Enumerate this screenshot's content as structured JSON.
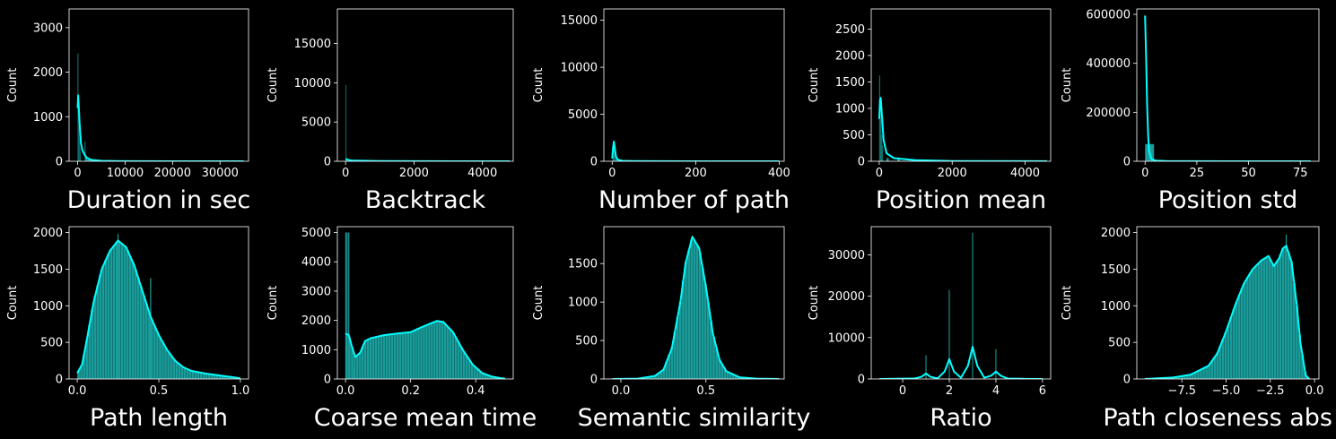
{
  "figure": {
    "background": "#000000"
  },
  "style": {
    "bar_fill": "#1a9c9a",
    "bar_stroke": "#0b4f4e",
    "kde": "#00ffff",
    "axis": "#ffffff",
    "text": "#ffffff"
  },
  "chart_data": [
    {
      "type": "histogram",
      "xlabel": "Duration in sec",
      "ylabel": "Count",
      "xlim": [
        -1800,
        36000
      ],
      "ylim": [
        0,
        3420
      ],
      "xticks": [
        0,
        10000,
        20000,
        30000
      ],
      "xtick_labels": [
        "0",
        "10000",
        "20000",
        "30000"
      ],
      "yticks": [
        0,
        1000,
        2000,
        3000
      ],
      "ytick_labels": [
        "0",
        "1000",
        "2000",
        "3000"
      ],
      "bars": [
        [
          0,
          100,
          2420
        ],
        [
          100,
          200,
          1000
        ],
        [
          200,
          300,
          800
        ],
        [
          300,
          400,
          520
        ],
        [
          400,
          500,
          300
        ],
        [
          500,
          600,
          200
        ],
        [
          1500,
          1600,
          440
        ],
        [
          1600,
          2000,
          80
        ],
        [
          2000,
          3000,
          40
        ]
      ],
      "kde": [
        [
          0,
          1200
        ],
        [
          100,
          1480
        ],
        [
          200,
          1300
        ],
        [
          400,
          900
        ],
        [
          700,
          400
        ],
        [
          1000,
          250
        ],
        [
          1500,
          140
        ],
        [
          2000,
          70
        ],
        [
          3000,
          30
        ],
        [
          5000,
          10
        ],
        [
          10000,
          3
        ],
        [
          20000,
          1
        ],
        [
          35000,
          0
        ]
      ]
    },
    {
      "type": "histogram",
      "xlabel": "Backtrack",
      "ylabel": "Count",
      "xlim": [
        -240,
        4900
      ],
      "ylim": [
        0,
        19400
      ],
      "xticks": [
        0,
        2000,
        4000
      ],
      "xtick_labels": [
        "0",
        "2000",
        "4000"
      ],
      "yticks": [
        0,
        5000,
        10000,
        15000
      ],
      "ytick_labels": [
        "0",
        "5000",
        "10000",
        "15000"
      ],
      "bars": [
        [
          0,
          8,
          9700
        ],
        [
          8,
          20,
          500
        ],
        [
          20,
          60,
          150
        ]
      ],
      "kde": [
        [
          0,
          300
        ],
        [
          50,
          200
        ],
        [
          200,
          80
        ],
        [
          1000,
          20
        ],
        [
          2000,
          8
        ],
        [
          4800,
          3
        ]
      ]
    },
    {
      "type": "histogram",
      "xlabel": "Number of path",
      "ylabel": "Count",
      "xlim": [
        -20,
        412
      ],
      "ylim": [
        0,
        16200
      ],
      "xticks": [
        0,
        200,
        400
      ],
      "xtick_labels": [
        "0",
        "200",
        "400"
      ],
      "yticks": [
        0,
        5000,
        10000,
        15000
      ],
      "ytick_labels": [
        "0",
        "5000",
        "10000",
        "15000"
      ],
      "bars": [
        [
          1,
          3,
          800
        ],
        [
          3,
          5,
          2000
        ],
        [
          5,
          7,
          1400
        ],
        [
          7,
          9,
          600
        ],
        [
          9,
          12,
          250
        ]
      ],
      "kde": [
        [
          0,
          300
        ],
        [
          2,
          1400
        ],
        [
          4,
          2100
        ],
        [
          6,
          1500
        ],
        [
          9,
          500
        ],
        [
          14,
          150
        ],
        [
          25,
          50
        ],
        [
          50,
          20
        ],
        [
          100,
          8
        ],
        [
          200,
          4
        ],
        [
          400,
          1
        ]
      ]
    },
    {
      "type": "histogram",
      "xlabel": "Position mean",
      "ylabel": "Count",
      "xlim": [
        -220,
        4700
      ],
      "ylim": [
        0,
        2880
      ],
      "xticks": [
        0,
        2000,
        4000
      ],
      "xtick_labels": [
        "0",
        "2000",
        "4000"
      ],
      "yticks": [
        0,
        500,
        1000,
        1500,
        2000,
        2500
      ],
      "ytick_labels": [
        "0",
        "500",
        "1000",
        "1500",
        "2000",
        "2500"
      ],
      "bars": [
        [
          0,
          20,
          1620
        ],
        [
          20,
          40,
          1200
        ],
        [
          40,
          60,
          800
        ],
        [
          60,
          80,
          500
        ],
        [
          80,
          100,
          300
        ],
        [
          200,
          260,
          60
        ],
        [
          500,
          560,
          70
        ],
        [
          900,
          960,
          40
        ]
      ],
      "kde": [
        [
          0,
          800
        ],
        [
          20,
          1150
        ],
        [
          40,
          1200
        ],
        [
          70,
          900
        ],
        [
          120,
          400
        ],
        [
          200,
          150
        ],
        [
          400,
          60
        ],
        [
          1000,
          20
        ],
        [
          2000,
          5
        ],
        [
          4600,
          1
        ]
      ]
    },
    {
      "type": "histogram",
      "xlabel": "Position std",
      "ylabel": "Count",
      "xlim": [
        -4,
        84
      ],
      "ylim": [
        0,
        622000
      ],
      "xticks": [
        0,
        25,
        50,
        75
      ],
      "xtick_labels": [
        "0",
        "25",
        "50",
        "75"
      ],
      "yticks": [
        0,
        200000,
        400000,
        600000
      ],
      "ytick_labels": [
        "0",
        "200000",
        "400000",
        "600000"
      ],
      "bars": [
        [
          0,
          4.3,
          70000
        ],
        [
          4.3,
          8.6,
          4000
        ],
        [
          8.6,
          12.9,
          1500
        ],
        [
          12.9,
          17.2,
          500
        ]
      ],
      "kde": [
        [
          0,
          595000
        ],
        [
          0.5,
          420000
        ],
        [
          1,
          230000
        ],
        [
          1.5,
          100000
        ],
        [
          2,
          40000
        ],
        [
          3,
          10000
        ],
        [
          5,
          2500
        ],
        [
          10,
          800
        ],
        [
          20,
          200
        ],
        [
          40,
          50
        ],
        [
          80,
          0
        ]
      ]
    },
    {
      "type": "histogram",
      "xlabel": "Path length",
      "ylabel": "Count",
      "xlim": [
        -0.05,
        1.05
      ],
      "ylim": [
        0,
        2080
      ],
      "xticks": [
        0,
        0.5,
        1
      ],
      "xtick_labels": [
        "0.0",
        "0.5",
        "1.0"
      ],
      "yticks": [
        0,
        500,
        1000,
        1500,
        2000
      ],
      "ytick_labels": [
        "0",
        "500",
        "1000",
        "1500",
        "2000"
      ],
      "bars": "kde",
      "spikes": [
        [
          0.25,
          1980
        ],
        [
          0.45,
          1380
        ]
      ],
      "kde": [
        [
          0,
          80
        ],
        [
          0.03,
          200
        ],
        [
          0.06,
          550
        ],
        [
          0.1,
          1050
        ],
        [
          0.15,
          1500
        ],
        [
          0.2,
          1750
        ],
        [
          0.25,
          1890
        ],
        [
          0.3,
          1800
        ],
        [
          0.35,
          1550
        ],
        [
          0.4,
          1200
        ],
        [
          0.45,
          850
        ],
        [
          0.5,
          600
        ],
        [
          0.55,
          400
        ],
        [
          0.6,
          250
        ],
        [
          0.65,
          160
        ],
        [
          0.7,
          110
        ],
        [
          0.8,
          70
        ],
        [
          0.9,
          40
        ],
        [
          1.0,
          10
        ]
      ]
    },
    {
      "type": "histogram",
      "xlabel": "Coarse mean time",
      "ylabel": "Count",
      "xlim": [
        -0.025,
        0.515
      ],
      "ylim": [
        0,
        5200
      ],
      "xticks": [
        0,
        0.2,
        0.4
      ],
      "xtick_labels": [
        "0.0",
        "0.2",
        "0.4"
      ],
      "yticks": [
        0,
        1000,
        2000,
        3000,
        4000,
        5000
      ],
      "ytick_labels": [
        "0",
        "1000",
        "2000",
        "3000",
        "4000",
        "5000"
      ],
      "bars": "kde",
      "spikes": [
        [
          0.001,
          5000
        ],
        [
          0.005,
          5000
        ],
        [
          0.01,
          5000
        ],
        [
          0.022,
          800
        ],
        [
          0.026,
          400
        ]
      ],
      "kde": [
        [
          0,
          1550
        ],
        [
          0.01,
          1500
        ],
        [
          0.02,
          1100
        ],
        [
          0.03,
          750
        ],
        [
          0.045,
          900
        ],
        [
          0.06,
          1300
        ],
        [
          0.08,
          1400
        ],
        [
          0.12,
          1500
        ],
        [
          0.16,
          1550
        ],
        [
          0.2,
          1600
        ],
        [
          0.24,
          1800
        ],
        [
          0.28,
          1980
        ],
        [
          0.3,
          1950
        ],
        [
          0.33,
          1600
        ],
        [
          0.36,
          1000
        ],
        [
          0.39,
          500
        ],
        [
          0.42,
          200
        ],
        [
          0.45,
          80
        ],
        [
          0.48,
          20
        ],
        [
          0.49,
          5
        ]
      ]
    },
    {
      "type": "histogram",
      "xlabel": "Semantic similarity",
      "ylabel": "Count",
      "xlim": [
        -0.1,
        0.96
      ],
      "ylim": [
        0,
        1980
      ],
      "xticks": [
        0,
        0.5
      ],
      "xtick_labels": [
        "0.0",
        "0.5"
      ],
      "yticks": [
        0,
        500,
        1000,
        1500
      ],
      "ytick_labels": [
        "0",
        "500",
        "1000",
        "1500"
      ],
      "bars": "kde",
      "kde": [
        [
          -0.05,
          0
        ],
        [
          0.1,
          5
        ],
        [
          0.2,
          40
        ],
        [
          0.25,
          120
        ],
        [
          0.3,
          400
        ],
        [
          0.35,
          1000
        ],
        [
          0.38,
          1500
        ],
        [
          0.42,
          1850
        ],
        [
          0.46,
          1700
        ],
        [
          0.5,
          1200
        ],
        [
          0.54,
          600
        ],
        [
          0.58,
          250
        ],
        [
          0.62,
          100
        ],
        [
          0.7,
          20
        ],
        [
          0.8,
          5
        ],
        [
          0.93,
          0
        ]
      ]
    },
    {
      "type": "histogram",
      "xlabel": "Ratio",
      "ylabel": "Count",
      "xlim": [
        -1.35,
        6.35
      ],
      "ylim": [
        0,
        36800
      ],
      "xticks": [
        0,
        2,
        4,
        6
      ],
      "xtick_labels": [
        "0",
        "2",
        "4",
        "6"
      ],
      "yticks": [
        0,
        10000,
        20000,
        30000
      ],
      "ytick_labels": [
        "0",
        "10000",
        "20000",
        "30000"
      ],
      "bars": [
        [
          0.98,
          1.02,
          5700
        ],
        [
          1.98,
          2.02,
          21500
        ],
        [
          2.98,
          3.02,
          35300
        ],
        [
          3.98,
          4.02,
          7200
        ],
        [
          4.98,
          5.02,
          300
        ]
      ],
      "kde": [
        [
          -1,
          0
        ],
        [
          0.5,
          100
        ],
        [
          0.8,
          500
        ],
        [
          1,
          1300
        ],
        [
          1.2,
          500
        ],
        [
          1.5,
          150
        ],
        [
          1.8,
          1800
        ],
        [
          2,
          4800
        ],
        [
          2.2,
          1800
        ],
        [
          2.5,
          300
        ],
        [
          2.8,
          3200
        ],
        [
          3,
          7800
        ],
        [
          3.2,
          3200
        ],
        [
          3.5,
          300
        ],
        [
          3.8,
          800
        ],
        [
          4,
          1800
        ],
        [
          4.2,
          800
        ],
        [
          4.5,
          100
        ],
        [
          5,
          50
        ],
        [
          6,
          0
        ]
      ]
    },
    {
      "type": "histogram",
      "xlabel": "Path closeness abs s",
      "ylabel": "Count",
      "xlim": [
        -10.05,
        0.25
      ],
      "ylim": [
        0,
        2080
      ],
      "xticks": [
        -7.5,
        -5,
        -2.5,
        0
      ],
      "xtick_labels": [
        "−7.5",
        "−5.0",
        "−2.5",
        "0.0"
      ],
      "yticks": [
        0,
        500,
        1000,
        1500,
        2000
      ],
      "ytick_labels": [
        "0",
        "500",
        "1000",
        "1500",
        "2000"
      ],
      "bars": "kde",
      "spikes": [
        [
          -1.6,
          1970
        ],
        [
          -2.1,
          1500
        ]
      ],
      "kde": [
        [
          -9.6,
          0
        ],
        [
          -8,
          20
        ],
        [
          -7,
          60
        ],
        [
          -6,
          180
        ],
        [
          -5.5,
          350
        ],
        [
          -5,
          650
        ],
        [
          -4.5,
          1000
        ],
        [
          -4,
          1300
        ],
        [
          -3.5,
          1500
        ],
        [
          -3,
          1620
        ],
        [
          -2.6,
          1680
        ],
        [
          -2.3,
          1540
        ],
        [
          -2,
          1650
        ],
        [
          -1.8,
          1780
        ],
        [
          -1.6,
          1820
        ],
        [
          -1.3,
          1600
        ],
        [
          -1.0,
          1000
        ],
        [
          -0.8,
          500
        ],
        [
          -0.5,
          50
        ],
        [
          -0.3,
          0
        ]
      ]
    }
  ]
}
